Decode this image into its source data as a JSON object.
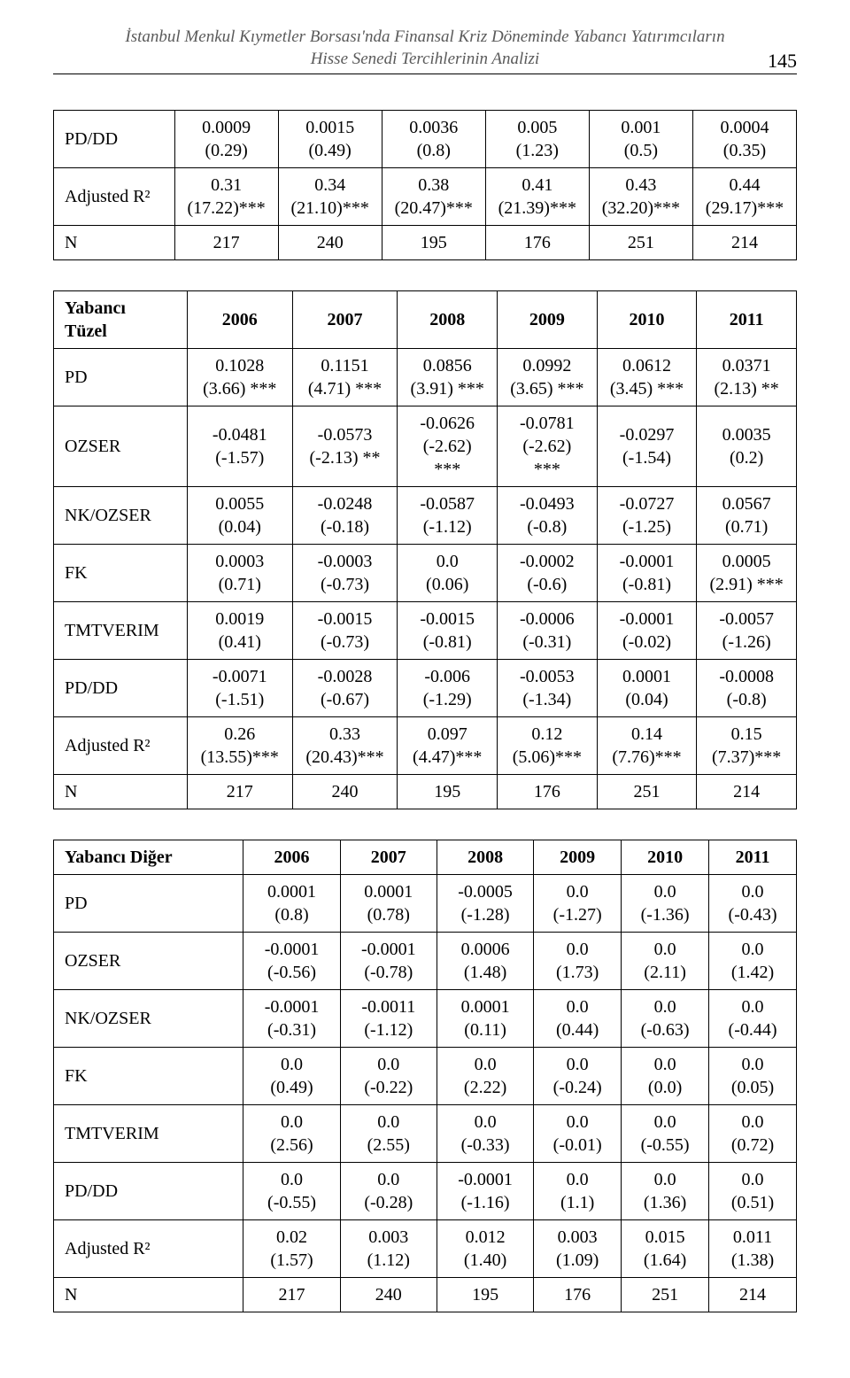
{
  "header": {
    "line1": "İstanbul Menkul Kıymetler Borsası'nda Finansal Kriz Döneminde Yabancı Yatırımcıların",
    "line2": "Hisse Senedi Tercihlerinin Analizi",
    "page_number": "145"
  },
  "table1": {
    "rows": [
      {
        "label": "PD/DD",
        "cells": [
          [
            "0.0009",
            "(0.29)"
          ],
          [
            "0.0015",
            "(0.49)"
          ],
          [
            "0.0036",
            "(0.8)"
          ],
          [
            "0.005",
            "(1.23)"
          ],
          [
            "0.001",
            "(0.5)"
          ],
          [
            "0.0004",
            "(0.35)"
          ]
        ]
      },
      {
        "label": "Adjusted R²",
        "cells": [
          [
            "0.31",
            "(17.22)***"
          ],
          [
            "0.34",
            "(21.10)***"
          ],
          [
            "0.38",
            "(20.47)***"
          ],
          [
            "0.41",
            "(21.39)***"
          ],
          [
            "0.43",
            "(32.20)***"
          ],
          [
            "0.44",
            "(29.17)***"
          ]
        ]
      },
      {
        "label": "N",
        "cells": [
          [
            "217"
          ],
          [
            "240"
          ],
          [
            "195"
          ],
          [
            "176"
          ],
          [
            "251"
          ],
          [
            "214"
          ]
        ]
      }
    ]
  },
  "table2": {
    "header_label": "Yabancı Tüzel",
    "years": [
      "2006",
      "2007",
      "2008",
      "2009",
      "2010",
      "2011"
    ],
    "rows": [
      {
        "label": "PD",
        "cells": [
          [
            "0.1028",
            "(3.66) ***"
          ],
          [
            "0.1151",
            "(4.71) ***"
          ],
          [
            "0.0856",
            "(3.91) ***"
          ],
          [
            "0.0992",
            "(3.65) ***"
          ],
          [
            "0.0612",
            "(3.45) ***"
          ],
          [
            "0.0371",
            "(2.13) **"
          ]
        ]
      },
      {
        "label": "OZSER",
        "cells": [
          [
            "-0.0481",
            "(-1.57)"
          ],
          [
            "-0.0573",
            "(-2.13) **"
          ],
          [
            "-0.0626",
            "(-2.62)",
            "***"
          ],
          [
            "-0.0781",
            "(-2.62)",
            "***"
          ],
          [
            "-0.0297",
            "(-1.54)"
          ],
          [
            "0.0035",
            "(0.2)"
          ]
        ]
      },
      {
        "label": "NK/OZSER",
        "cells": [
          [
            "0.0055",
            "(0.04)"
          ],
          [
            "-0.0248",
            "(-0.18)"
          ],
          [
            "-0.0587",
            "(-1.12)"
          ],
          [
            "-0.0493",
            "(-0.8)"
          ],
          [
            "-0.0727",
            "(-1.25)"
          ],
          [
            "0.0567",
            "(0.71)"
          ]
        ]
      },
      {
        "label": "FK",
        "cells": [
          [
            "0.0003",
            "(0.71)"
          ],
          [
            "-0.0003",
            "(-0.73)"
          ],
          [
            "0.0",
            "(0.06)"
          ],
          [
            "-0.0002",
            "(-0.6)"
          ],
          [
            "-0.0001",
            "(-0.81)"
          ],
          [
            "0.0005",
            "(2.91) ***"
          ]
        ]
      },
      {
        "label": "TMTVERIM",
        "cells": [
          [
            "0.0019",
            "(0.41)"
          ],
          [
            "-0.0015",
            "(-0.73)"
          ],
          [
            "-0.0015",
            "(-0.81)"
          ],
          [
            "-0.0006",
            "(-0.31)"
          ],
          [
            "-0.0001",
            "(-0.02)"
          ],
          [
            "-0.0057",
            "(-1.26)"
          ]
        ]
      },
      {
        "label": "PD/DD",
        "cells": [
          [
            "-0.0071",
            "(-1.51)"
          ],
          [
            "-0.0028",
            "(-0.67)"
          ],
          [
            "-0.006",
            "(-1.29)"
          ],
          [
            "-0.0053",
            "(-1.34)"
          ],
          [
            "0.0001",
            "(0.04)"
          ],
          [
            "-0.0008",
            "(-0.8)"
          ]
        ]
      },
      {
        "label": "Adjusted R²",
        "cells": [
          [
            "0.26",
            "(13.55)***"
          ],
          [
            "0.33",
            "(20.43)***"
          ],
          [
            "0.097",
            "(4.47)***"
          ],
          [
            "0.12",
            "(5.06)***"
          ],
          [
            "0.14",
            "(7.76)***"
          ],
          [
            "0.15",
            "(7.37)***"
          ]
        ]
      },
      {
        "label": "N",
        "cells": [
          [
            "217"
          ],
          [
            "240"
          ],
          [
            "195"
          ],
          [
            "176"
          ],
          [
            "251"
          ],
          [
            "214"
          ]
        ]
      }
    ]
  },
  "table3": {
    "header_label": "Yabancı Diğer",
    "years": [
      "2006",
      "2007",
      "2008",
      "2009",
      "2010",
      "2011"
    ],
    "rows": [
      {
        "label": "PD",
        "cells": [
          [
            "0.0001",
            "(0.8)"
          ],
          [
            "0.0001",
            "(0.78)"
          ],
          [
            "-0.0005",
            "(-1.28)"
          ],
          [
            "0.0",
            "(-1.27)"
          ],
          [
            "0.0",
            "(-1.36)"
          ],
          [
            "0.0",
            "(-0.43)"
          ]
        ]
      },
      {
        "label": "OZSER",
        "cells": [
          [
            "-0.0001",
            "(-0.56)"
          ],
          [
            "-0.0001",
            "(-0.78)"
          ],
          [
            "0.0006",
            "(1.48)"
          ],
          [
            "0.0",
            "(1.73)"
          ],
          [
            "0.0",
            "(2.11)"
          ],
          [
            "0.0",
            "(1.42)"
          ]
        ]
      },
      {
        "label": "NK/OZSER",
        "cells": [
          [
            "-0.0001",
            "(-0.31)"
          ],
          [
            "-0.0011",
            "(-1.12)"
          ],
          [
            "0.0001",
            "(0.11)"
          ],
          [
            "0.0",
            "(0.44)"
          ],
          [
            "0.0",
            "(-0.63)"
          ],
          [
            "0.0",
            "(-0.44)"
          ]
        ]
      },
      {
        "label": "FK",
        "cells": [
          [
            "0.0",
            "(0.49)"
          ],
          [
            "0.0",
            "(-0.22)"
          ],
          [
            "0.0",
            "(2.22)"
          ],
          [
            "0.0",
            "(-0.24)"
          ],
          [
            "0.0",
            "(0.0)"
          ],
          [
            "0.0",
            "(0.05)"
          ]
        ]
      },
      {
        "label": "TMTVERIM",
        "cells": [
          [
            "0.0",
            "(2.56)"
          ],
          [
            "0.0",
            "(2.55)"
          ],
          [
            "0.0",
            "(-0.33)"
          ],
          [
            "0.0",
            "(-0.01)"
          ],
          [
            "0.0",
            "(-0.55)"
          ],
          [
            "0.0",
            "(0.72)"
          ]
        ]
      },
      {
        "label": "PD/DD",
        "cells": [
          [
            "0.0",
            "(-0.55)"
          ],
          [
            "0.0",
            "(-0.28)"
          ],
          [
            "-0.0001",
            "(-1.16)"
          ],
          [
            "0.0",
            "(1.1)"
          ],
          [
            "0.0",
            "(1.36)"
          ],
          [
            "0.0",
            "(0.51)"
          ]
        ]
      },
      {
        "label": "Adjusted R²",
        "cells": [
          [
            "0.02",
            "(1.57)"
          ],
          [
            "0.003",
            "(1.12)"
          ],
          [
            "0.012",
            "(1.40)"
          ],
          [
            "0.003",
            "(1.09)"
          ],
          [
            "0.015",
            "(1.64)"
          ],
          [
            "0.011",
            "(1.38)"
          ]
        ]
      },
      {
        "label": "N",
        "cells": [
          [
            "217"
          ],
          [
            "240"
          ],
          [
            "195"
          ],
          [
            "176"
          ],
          [
            "251"
          ],
          [
            "214"
          ]
        ]
      }
    ]
  }
}
